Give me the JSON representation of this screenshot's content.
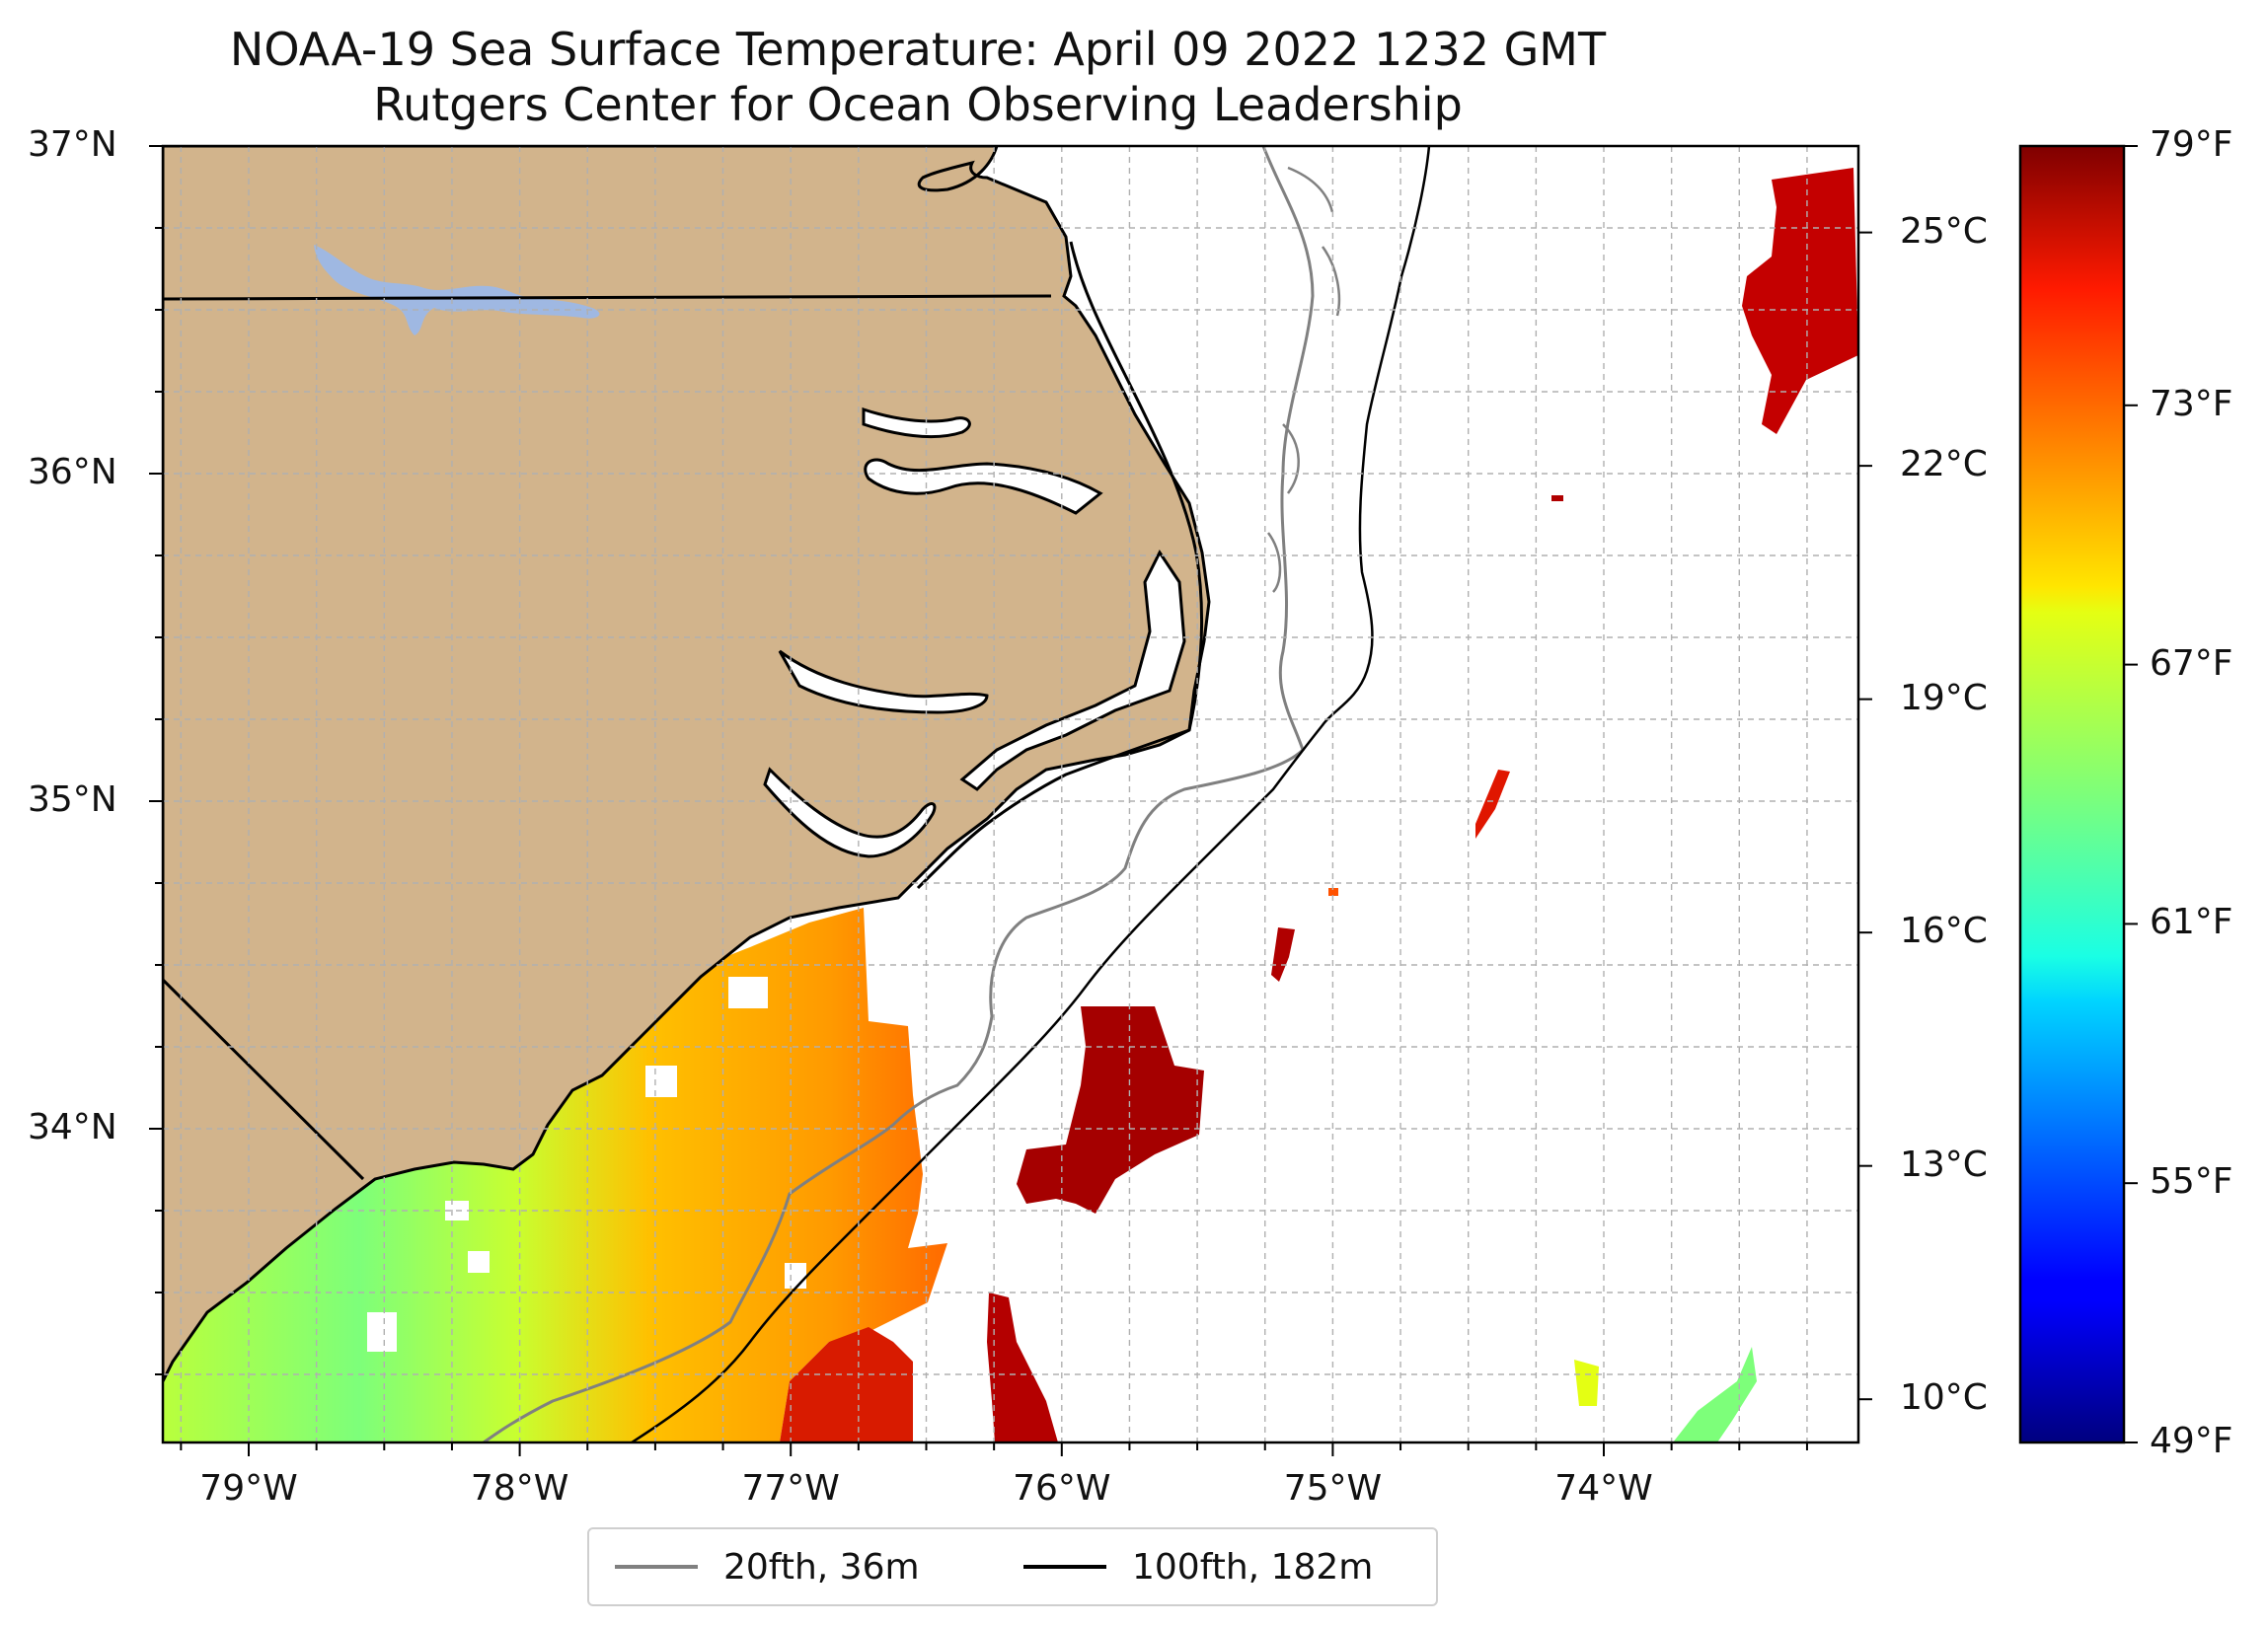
{
  "title": {
    "line1": "NOAA-19 Sea Surface Temperature: April 09 2022 1232 GMT",
    "line2": "Rutgers Center for Ocean Observing Leadership"
  },
  "map": {
    "lat_ticks": [
      {
        "value": 37,
        "label": "37°N"
      },
      {
        "value": 36,
        "label": "36°N"
      },
      {
        "value": 35,
        "label": "35°N"
      },
      {
        "value": 34,
        "label": "34°N"
      }
    ],
    "lon_ticks": [
      {
        "value": -79,
        "label": "79°W"
      },
      {
        "value": -78,
        "label": "78°W"
      },
      {
        "value": -77,
        "label": "77°W"
      },
      {
        "value": -76,
        "label": "76°W"
      },
      {
        "value": -75,
        "label": "75°W"
      },
      {
        "value": -74,
        "label": "74°W"
      }
    ],
    "colors": {
      "land": "#d2b48c",
      "lakes": "#9fb8e2",
      "coastline": "#000000",
      "isobath_20fth": "#808080",
      "isobath_100fth": "#000000",
      "grid": "#b0b0b0"
    }
  },
  "colorbar": {
    "cmap": "jet",
    "min_f": 49,
    "max_f": 79,
    "celsius_ticks": [
      {
        "value": 25,
        "label": "25°C"
      },
      {
        "value": 22,
        "label": "22°C"
      },
      {
        "value": 19,
        "label": "19°C"
      },
      {
        "value": 16,
        "label": "16°C"
      },
      {
        "value": 13,
        "label": "13°C"
      },
      {
        "value": 10,
        "label": "10°C"
      }
    ],
    "fahrenheit_ticks": [
      {
        "value": 79,
        "label": "79°F"
      },
      {
        "value": 73,
        "label": "73°F"
      },
      {
        "value": 67,
        "label": "67°F"
      },
      {
        "value": 61,
        "label": "61°F"
      },
      {
        "value": 55,
        "label": "55°F"
      },
      {
        "value": 49,
        "label": "49°F"
      }
    ]
  },
  "legend": {
    "items": [
      {
        "label": "20fth, 36m",
        "color": "#808080"
      },
      {
        "label": "100fth, 182m",
        "color": "#000000"
      }
    ]
  }
}
